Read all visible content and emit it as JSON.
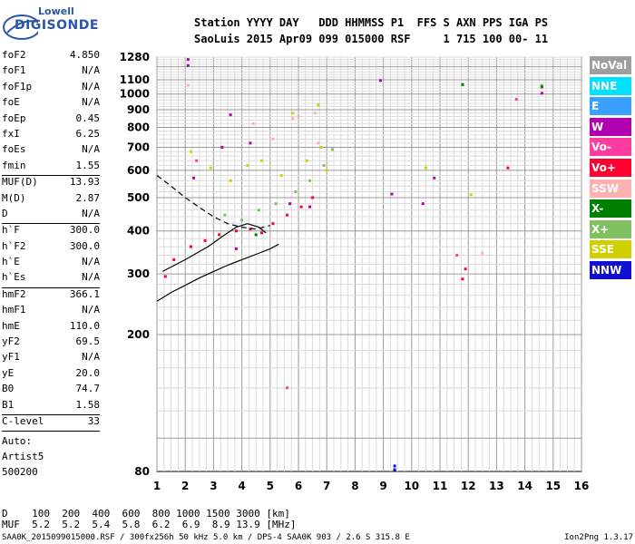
{
  "logo": {
    "maker": "Lowell",
    "brand": "DIGISONDE"
  },
  "header": {
    "line1": "Station YYYY DAY   DDD HHMMSS P1  FFS S AXN PPS IGA PS",
    "line2": "SaoLuis 2015 Apr09 099 015000 RSF     1 715 100 00- 11"
  },
  "params": [
    {
      "label": "foF2",
      "value": "4.850"
    },
    {
      "label": "foF1",
      "value": "N/A"
    },
    {
      "label": "foF1p",
      "value": "N/A"
    },
    {
      "label": "foE",
      "value": "N/A"
    },
    {
      "label": "foEp",
      "value": "0.45"
    },
    {
      "label": "fxI",
      "value": "6.25"
    },
    {
      "label": "foEs",
      "value": "N/A"
    },
    {
      "label": "fmin",
      "value": "1.55"
    },
    {
      "label": "MUF(D)",
      "value": "13.93"
    },
    {
      "label": "M(D)",
      "value": "2.87"
    },
    {
      "label": "D",
      "value": "N/A"
    },
    {
      "label": "h`F",
      "value": "300.0"
    },
    {
      "label": "h`F2",
      "value": "300.0"
    },
    {
      "label": "h`E",
      "value": "N/A"
    },
    {
      "label": "h`Es",
      "value": "N/A"
    },
    {
      "label": "hmF2",
      "value": "366.1"
    },
    {
      "label": "hmF1",
      "value": "N/A"
    },
    {
      "label": "hmE",
      "value": "110.0"
    },
    {
      "label": "yF2",
      "value": "69.5"
    },
    {
      "label": "yF1",
      "value": "N/A"
    },
    {
      "label": "yE",
      "value": "20.0"
    },
    {
      "label": "B0",
      "value": "74.7"
    },
    {
      "label": "B1",
      "value": "1.58"
    },
    {
      "label": "C-level",
      "value": "33"
    }
  ],
  "autoscaling": {
    "line1": "Auto:",
    "line2": "Artist5",
    "line3": "500200"
  },
  "distance_table": {
    "d_label": "D",
    "d_values": "100  200  400  600  800 1000 1500 3000 [km]",
    "muf_label": "MUF",
    "muf_values": "5.2  5.2  5.4  5.8  6.2  6.9  8.9 13.9 [MHz]"
  },
  "footer": {
    "left": "SAA0K_2015099015000.RSF / 300fx256h 50 kHz 5.0 km / DPS-4 SAA0K 903 / 2.6 S 315.8 E",
    "right": "Ion2Png 1.3.17"
  },
  "legend": [
    {
      "label": "NoVal",
      "color": "#9e9e9e"
    },
    {
      "label": "NNE",
      "color": "#00e0ff"
    },
    {
      "label": "E",
      "color": "#3aa0ff"
    },
    {
      "label": "W",
      "color": "#b000b0"
    },
    {
      "label": "Vo-",
      "color": "#ff3ca0"
    },
    {
      "label": "Vo+",
      "color": "#ff0030"
    },
    {
      "label": "SSW",
      "color": "#ffb0b0"
    },
    {
      "label": "X-",
      "color": "#008000"
    },
    {
      "label": "X+",
      "color": "#80c060"
    },
    {
      "label": "SSE",
      "color": "#d0d000"
    },
    {
      "label": "NNW",
      "color": "#1010d0"
    }
  ],
  "chart_data": {
    "type": "scatter",
    "title": "",
    "xlabel": "",
    "ylabel": "",
    "xlim": [
      1,
      16
    ],
    "ylim": [
      80,
      1280
    ],
    "xticks": [
      1,
      2,
      3,
      4,
      5,
      6,
      7,
      8,
      9,
      10,
      11,
      12,
      13,
      14,
      15,
      16
    ],
    "yticks": [
      80,
      200,
      300,
      400,
      500,
      600,
      700,
      800,
      900,
      1000,
      1100,
      1280
    ],
    "grid": true,
    "y_scale": "log",
    "series": [
      {
        "name": "W",
        "color": "#b000b0",
        "points": [
          [
            2.1,
            1260
          ],
          [
            2.1,
            1210
          ],
          [
            3.3,
            700
          ],
          [
            3.6,
            870
          ],
          [
            4.3,
            720
          ],
          [
            5.7,
            480
          ],
          [
            6.4,
            470
          ],
          [
            8.9,
            1095
          ],
          [
            9.3,
            512
          ],
          [
            10.8,
            570
          ],
          [
            10.4,
            480
          ],
          [
            14.6,
            1005
          ],
          [
            2.3,
            570
          ],
          [
            3.8,
            355
          ]
        ]
      },
      {
        "name": "Vo+",
        "color": "#ff0030",
        "points": [
          [
            1.6,
            330
          ],
          [
            2.2,
            360
          ],
          [
            2.7,
            375
          ],
          [
            3.2,
            390
          ],
          [
            3.8,
            400
          ],
          [
            4.3,
            405
          ],
          [
            4.7,
            395
          ],
          [
            5.1,
            420
          ],
          [
            5.6,
            445
          ],
          [
            6.1,
            470
          ],
          [
            6.5,
            500
          ],
          [
            13.4,
            610
          ],
          [
            11.9,
            310
          ],
          [
            11.8,
            290
          ],
          [
            1.3,
            295
          ]
        ]
      },
      {
        "name": "SSW",
        "color": "#ffb0b0",
        "points": [
          [
            5.8,
            850
          ],
          [
            6.0,
            860
          ],
          [
            6.6,
            880
          ],
          [
            6.7,
            720
          ],
          [
            5.1,
            740
          ],
          [
            4.4,
            820
          ],
          [
            12.5,
            345
          ],
          [
            2.1,
            1060
          ],
          [
            14.6,
            1040
          ]
        ]
      },
      {
        "name": "X+",
        "color": "#80c060",
        "points": [
          [
            4.0,
            430
          ],
          [
            4.6,
            460
          ],
          [
            5.2,
            480
          ],
          [
            5.9,
            520
          ],
          [
            6.4,
            560
          ],
          [
            6.9,
            620
          ],
          [
            7.2,
            690
          ],
          [
            14.6,
            1060
          ],
          [
            3.4,
            445
          ]
        ]
      },
      {
        "name": "SSE",
        "color": "#d0d000",
        "points": [
          [
            2.2,
            680
          ],
          [
            2.9,
            610
          ],
          [
            3.6,
            560
          ],
          [
            4.2,
            620
          ],
          [
            4.7,
            640
          ],
          [
            5.4,
            580
          ],
          [
            6.3,
            640
          ],
          [
            6.8,
            700
          ],
          [
            7.0,
            600
          ],
          [
            10.5,
            610
          ],
          [
            12.1,
            510
          ],
          [
            6.7,
            930
          ],
          [
            5.8,
            880
          ]
        ]
      },
      {
        "name": "X-",
        "color": "#008000",
        "points": [
          [
            11.8,
            1065
          ],
          [
            14.6,
            1050
          ],
          [
            4.5,
            390
          ]
        ]
      },
      {
        "name": "NNW",
        "color": "#1010d0",
        "points": [
          [
            9.4,
            81
          ],
          [
            9.4,
            83
          ]
        ]
      },
      {
        "name": "Vo-",
        "color": "#ff3ca0",
        "points": [
          [
            13.7,
            965
          ],
          [
            2.4,
            640
          ],
          [
            5.6,
            140
          ],
          [
            11.6,
            340
          ]
        ]
      }
    ],
    "traces": [
      {
        "name": "profile",
        "style": "solid",
        "points": [
          [
            1.0,
            250
          ],
          [
            1.5,
            265
          ],
          [
            2.0,
            278
          ],
          [
            2.5,
            292
          ],
          [
            3.0,
            305
          ],
          [
            3.5,
            318
          ],
          [
            4.0,
            330
          ],
          [
            4.5,
            342
          ],
          [
            5.0,
            355
          ],
          [
            5.3,
            366
          ]
        ]
      },
      {
        "name": "trace",
        "style": "solid",
        "points": [
          [
            1.2,
            305
          ],
          [
            2.0,
            330
          ],
          [
            2.8,
            360
          ],
          [
            3.3,
            385
          ],
          [
            3.8,
            410
          ],
          [
            4.2,
            420
          ],
          [
            4.6,
            410
          ],
          [
            4.85,
            395
          ]
        ]
      },
      {
        "name": "model",
        "style": "dashed",
        "points": [
          [
            1.0,
            580
          ],
          [
            1.5,
            540
          ],
          [
            2.0,
            500
          ],
          [
            2.5,
            468
          ],
          [
            3.0,
            440
          ],
          [
            3.5,
            420
          ],
          [
            4.0,
            410
          ],
          [
            4.5,
            405
          ],
          [
            5.0,
            415
          ]
        ]
      }
    ]
  }
}
